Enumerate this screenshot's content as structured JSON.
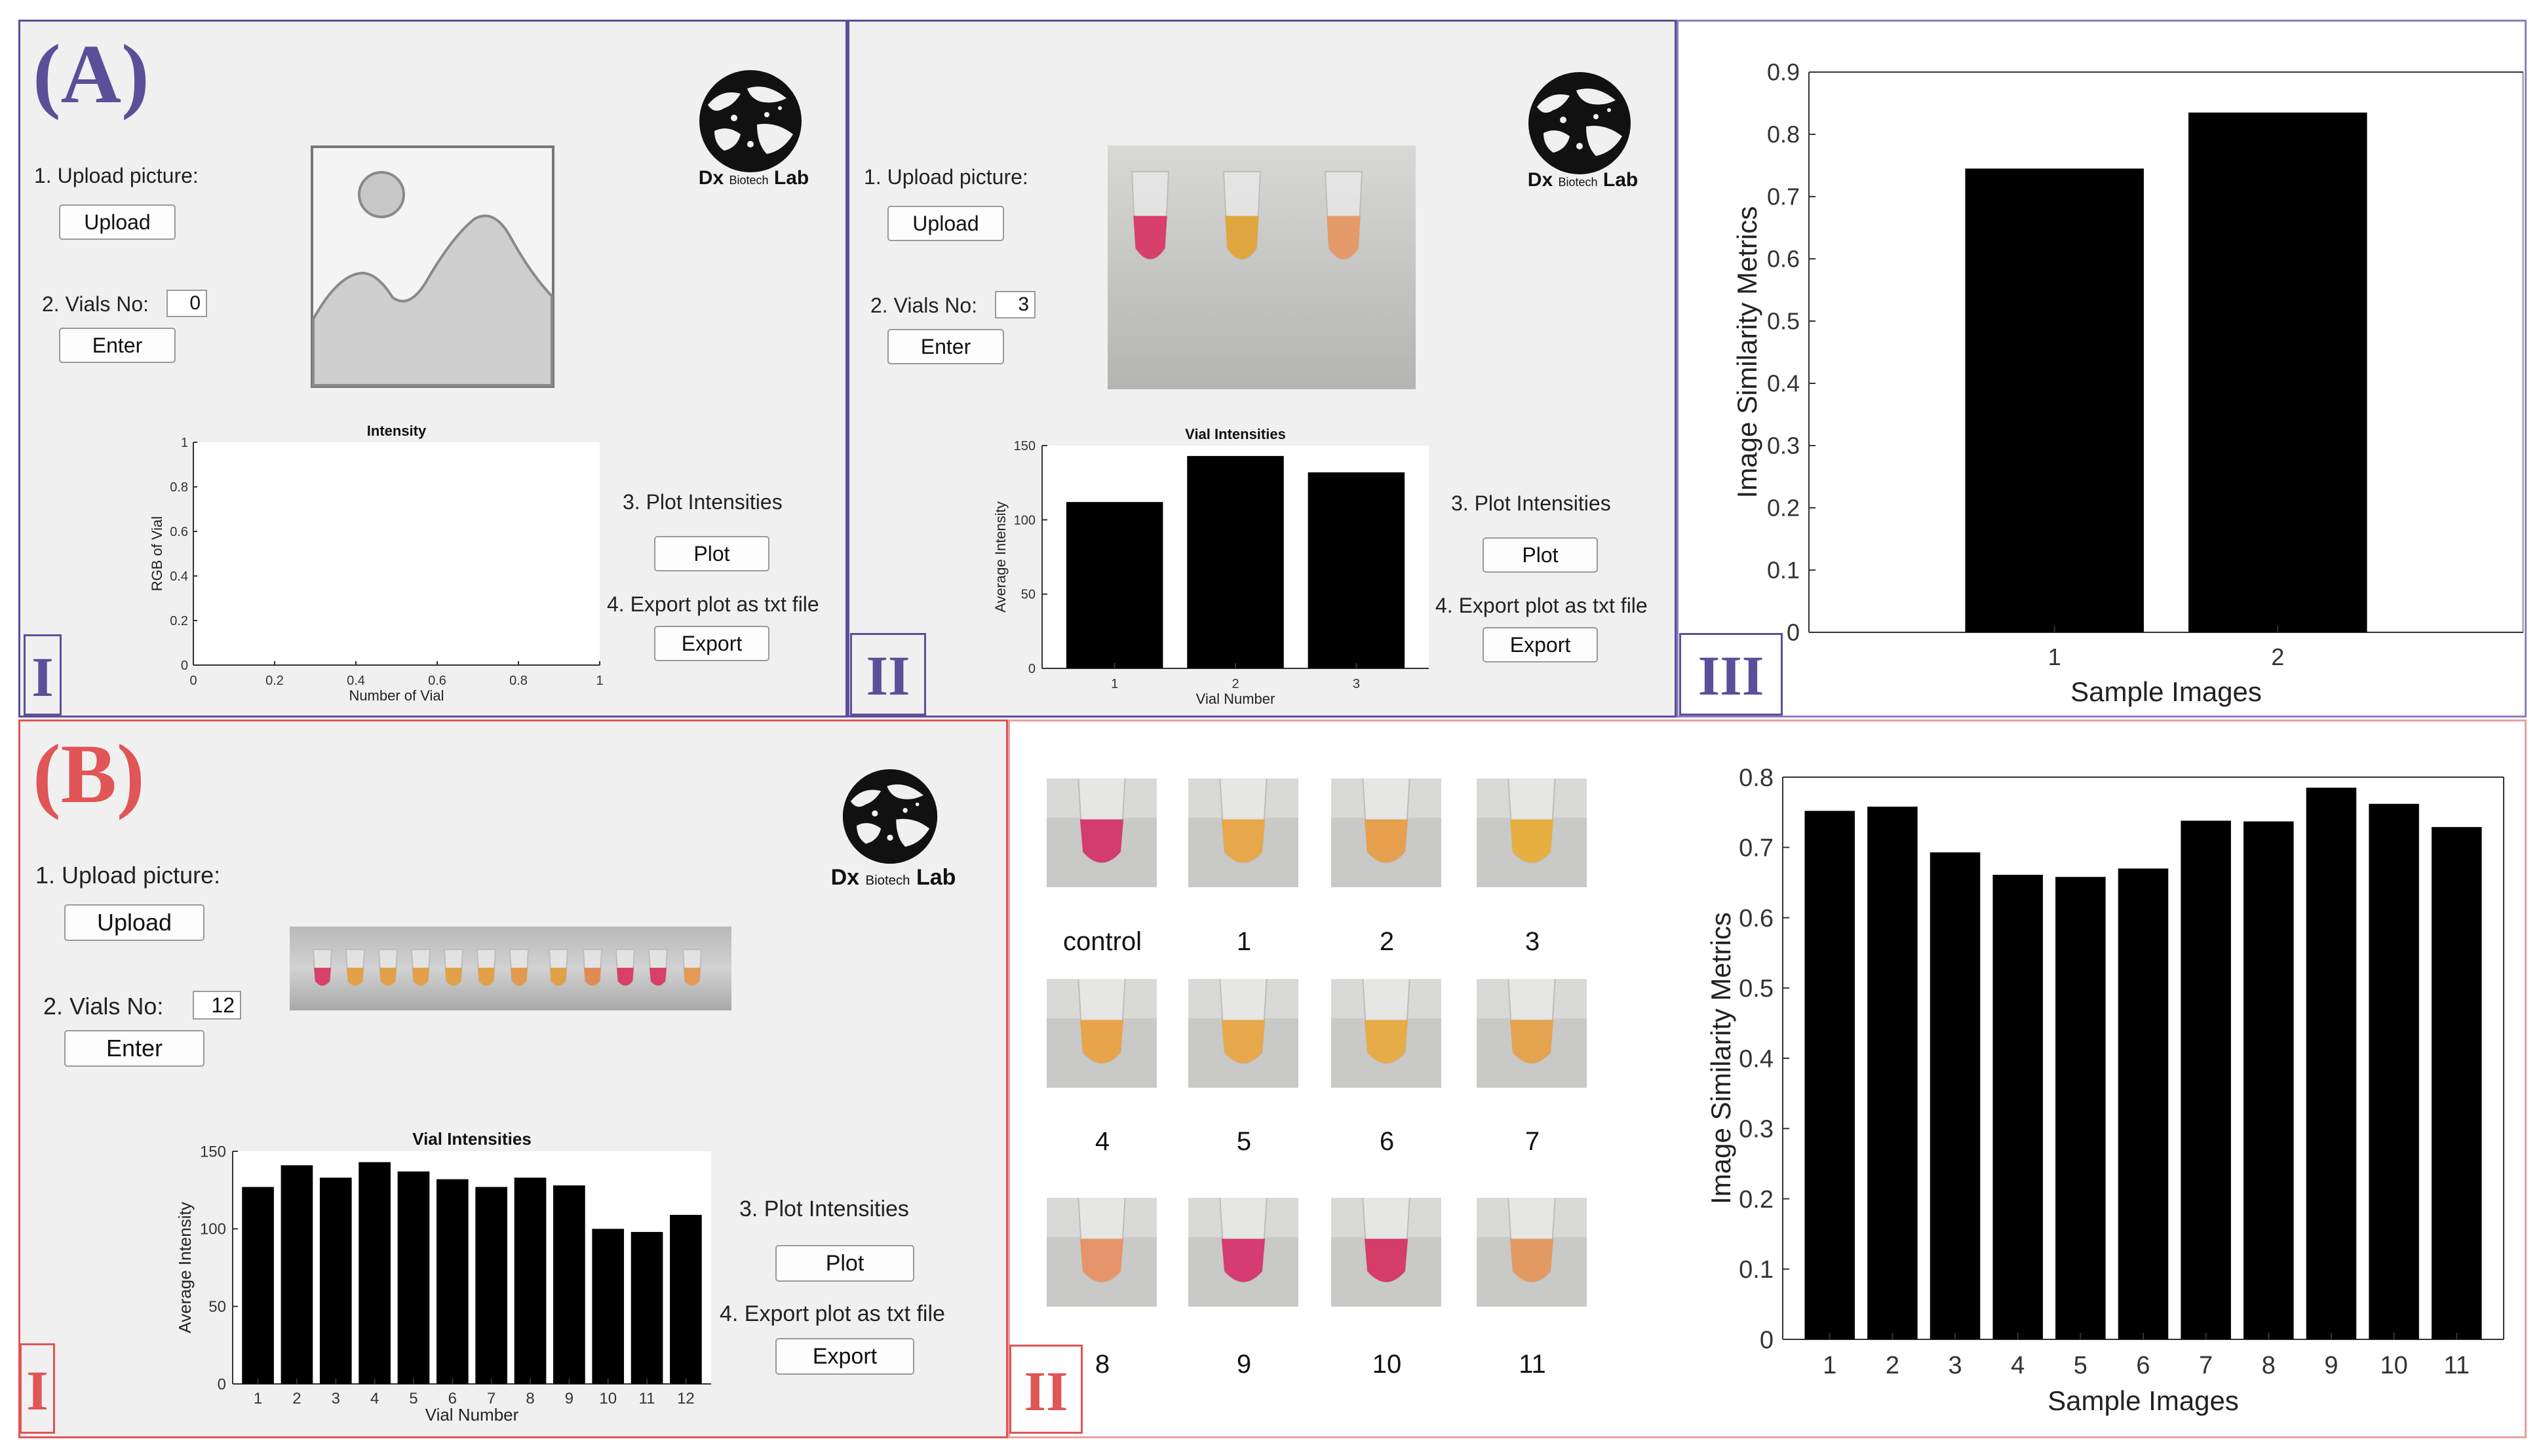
{
  "colors": {
    "purple": "#5b4f9a",
    "red": "#e05555",
    "bar": "#000000",
    "panel_bg": "#f0f0f0"
  },
  "logo": {
    "prefix": "Dx",
    "middle": "Biotech",
    "suffix": "Lab"
  },
  "section_a": {
    "letter": "(A)",
    "panel_1": {
      "roman": "I",
      "upload_label": "1. Upload picture:",
      "upload_button": "Upload",
      "vials_label": "2. Vials No:",
      "vials_value": "0",
      "enter_button": "Enter",
      "plot_label": "3. Plot Intensities",
      "plot_button": "Plot",
      "export_label": "4. Export plot as txt file",
      "export_button": "Export",
      "image_placeholder_icon": "image-placeholder-icon"
    },
    "panel_2": {
      "roman": "II",
      "upload_label": "1. Upload picture:",
      "upload_button": "Upload",
      "vials_label": "2. Vials No:",
      "vials_value": "3",
      "enter_button": "Enter",
      "plot_label": "3. Plot Intensities",
      "plot_button": "Plot",
      "export_label": "4. Export plot as txt file",
      "export_button": "Export",
      "tube_colors": [
        "#d6406a",
        "#e0a640",
        "#e59a6a"
      ]
    },
    "panel_3": {
      "roman": "III"
    }
  },
  "section_b": {
    "letter": "(B)",
    "panel_1": {
      "roman": "I",
      "upload_label": "1. Upload picture:",
      "upload_button": "Upload",
      "vials_label": "2. Vials No:",
      "vials_value": "12",
      "enter_button": "Enter",
      "plot_label": "3. Plot Intensities",
      "plot_button": "Plot",
      "export_label": "4. Export plot as txt file",
      "export_button": "Export",
      "strip_colors": [
        "#d6406a",
        "#e2a048",
        "#e2a048",
        "#e2a048",
        "#e2a048",
        "#e2a048",
        "#e09a50",
        "#e2a048",
        "#e28a55",
        "#d6406a",
        "#d6406a",
        "#e29a55"
      ]
    },
    "panel_2": {
      "roman": "II",
      "tubes": [
        {
          "label": "control",
          "color": "#d23c6e"
        },
        {
          "label": "1",
          "color": "#e6a84a"
        },
        {
          "label": "2",
          "color": "#e6a04e"
        },
        {
          "label": "3",
          "color": "#e6b040"
        },
        {
          "label": "4",
          "color": "#e8a44a"
        },
        {
          "label": "5",
          "color": "#e6a84a"
        },
        {
          "label": "6",
          "color": "#e6ac48"
        },
        {
          "label": "7",
          "color": "#e3a34f"
        },
        {
          "label": "8",
          "color": "#e6956a"
        },
        {
          "label": "9",
          "color": "#d43c72"
        },
        {
          "label": "10",
          "color": "#d43c6a"
        },
        {
          "label": "11",
          "color": "#e29a62"
        }
      ]
    }
  },
  "chart_data": [
    {
      "id": "a1",
      "type": "bar",
      "title": "Intensity",
      "xlabel": "Number of Vial",
      "ylabel": "RGB of Vial",
      "xlim": [
        0,
        1
      ],
      "ylim": [
        0,
        1
      ],
      "xticks": [
        "0",
        "0.2",
        "0.4",
        "0.6",
        "0.8",
        "1"
      ],
      "yticks": [
        "0",
        "0.2",
        "0.4",
        "0.6",
        "0.8",
        "1"
      ],
      "categories": [],
      "values": []
    },
    {
      "id": "a2",
      "type": "bar",
      "title": "Vial Intensities",
      "xlabel": "Vial Number",
      "ylabel": "Average Intensity",
      "ylim": [
        0,
        150
      ],
      "yticks": [
        "0",
        "50",
        "100",
        "150"
      ],
      "categories": [
        "1",
        "2",
        "3"
      ],
      "values": [
        112,
        143,
        132
      ]
    },
    {
      "id": "a3",
      "type": "bar",
      "title": "",
      "xlabel": "Sample Images",
      "ylabel": "Image Similarity Metrics",
      "ylim": [
        0,
        0.9
      ],
      "yticks": [
        "0",
        "0.1",
        "0.2",
        "0.3",
        "0.4",
        "0.5",
        "0.6",
        "0.7",
        "0.8",
        "0.9"
      ],
      "categories": [
        "1",
        "2"
      ],
      "values": [
        0.745,
        0.835
      ]
    },
    {
      "id": "b1",
      "type": "bar",
      "title": "Vial Intensities",
      "xlabel": "Vial Number",
      "ylabel": "Average Intensity",
      "ylim": [
        0,
        150
      ],
      "yticks": [
        "0",
        "50",
        "100",
        "150"
      ],
      "categories": [
        "1",
        "2",
        "3",
        "4",
        "5",
        "6",
        "7",
        "8",
        "9",
        "10",
        "11",
        "12"
      ],
      "values": [
        127,
        141,
        133,
        143,
        137,
        132,
        127,
        133,
        128,
        100,
        98,
        109
      ]
    },
    {
      "id": "b2",
      "type": "bar",
      "title": "",
      "xlabel": "Sample Images",
      "ylabel": "Image Similarity Metrics",
      "ylim": [
        0,
        0.8
      ],
      "yticks": [
        "0",
        "0.1",
        "0.2",
        "0.3",
        "0.4",
        "0.5",
        "0.6",
        "0.7",
        "0.8"
      ],
      "categories": [
        "1",
        "2",
        "3",
        "4",
        "5",
        "6",
        "7",
        "8",
        "9",
        "10",
        "11"
      ],
      "values": [
        0.752,
        0.758,
        0.693,
        0.661,
        0.658,
        0.67,
        0.738,
        0.737,
        0.785,
        0.762,
        0.729
      ]
    }
  ]
}
